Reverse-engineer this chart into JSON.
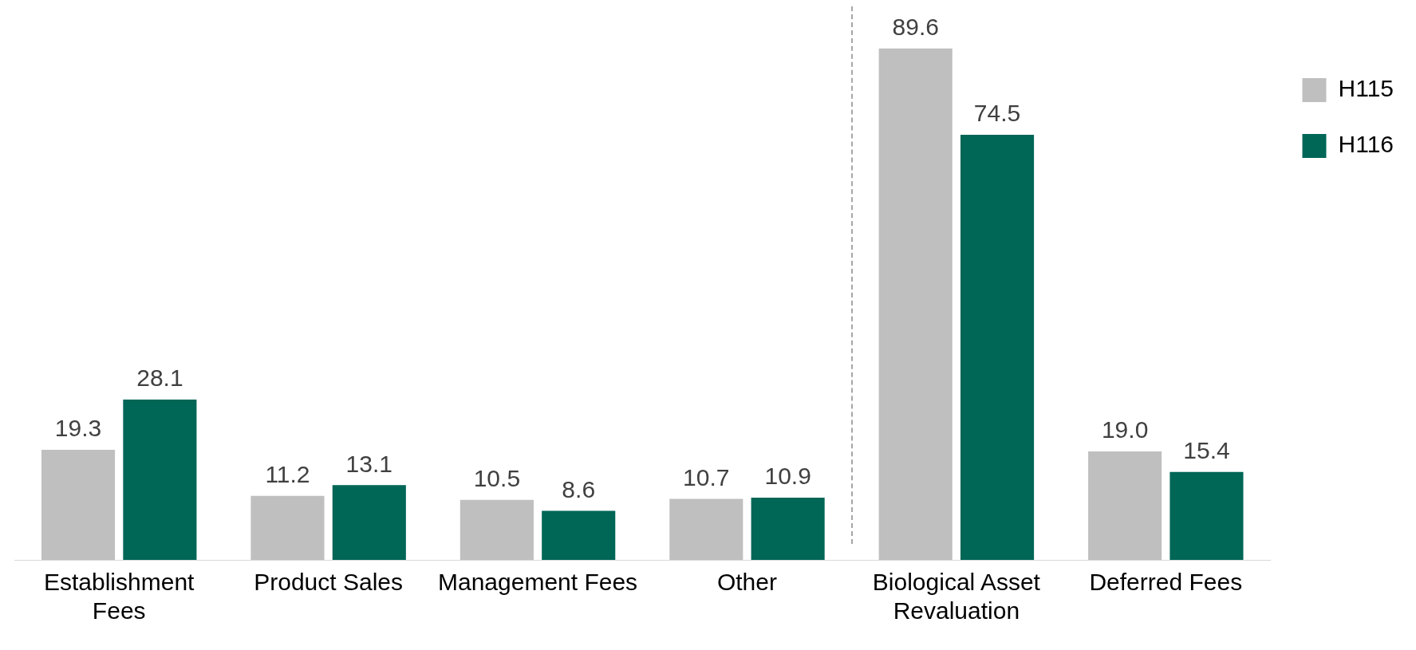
{
  "chart_data": {
    "type": "bar",
    "categories": [
      "Establishment Fees",
      "Product Sales",
      "Management Fees",
      "Other",
      "Biological Asset Revaluation",
      "Deferred Fees"
    ],
    "series": [
      {
        "name": "H115",
        "color": "#bfbfbf",
        "values": [
          19.3,
          11.2,
          10.5,
          10.7,
          89.6,
          19.0
        ],
        "value_labels": [
          "19.3",
          "11.2",
          "10.5",
          "10.7",
          "89.6",
          "19.0"
        ]
      },
      {
        "name": "H116",
        "color": "#006656",
        "values": [
          28.1,
          13.1,
          8.6,
          10.9,
          74.5,
          15.4
        ],
        "value_labels": [
          "28.1",
          "13.1",
          "8.6",
          "10.9",
          "74.5",
          "15.4"
        ]
      }
    ],
    "legend": "top right",
    "grid": false
  }
}
